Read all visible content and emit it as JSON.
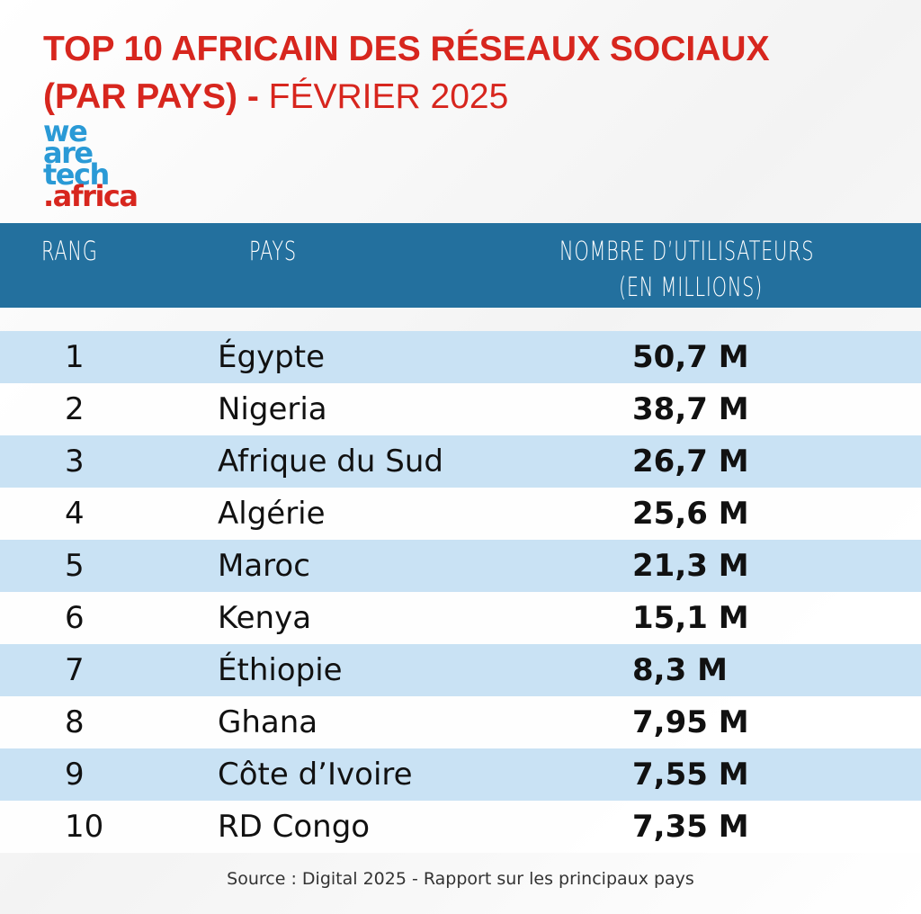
{
  "title": {
    "line1": "TOP 10 AFRICAIN DES RÉSEAUX SOCIAUX",
    "line2_bold": "(PAR PAYS) -",
    "line2_light": "FÉVRIER 2025"
  },
  "logo": {
    "line1": "we",
    "line2": "are",
    "line3": "tech",
    "line4": ".africa"
  },
  "table": {
    "header": [
      "RANG",
      "PAYS",
      "NOMBRE D’UTILISATEURS",
      "(EN MILLIONS)"
    ],
    "rows": [
      [
        "1",
        "Égypte",
        "50,7 M"
      ],
      [
        "2",
        "Nigeria",
        "38,7 M"
      ],
      [
        "3",
        "Afrique du Sud",
        "26,7 M"
      ],
      [
        "4",
        "Algérie",
        "25,6 M"
      ],
      [
        "5",
        "Maroc",
        "21,3 M"
      ],
      [
        "6",
        "Kenya",
        "15,1 M"
      ],
      [
        "7",
        "Éthiopie",
        "8,3 M"
      ],
      [
        "8",
        "Ghana",
        "7,95 M"
      ],
      [
        "9",
        "Côte d’Ivoire",
        "7,55 M"
      ],
      [
        "10",
        "RD Congo",
        "7,35 M"
      ]
    ]
  },
  "source": "Source : Digital 2025 - Rapport sur les principaux pays"
}
